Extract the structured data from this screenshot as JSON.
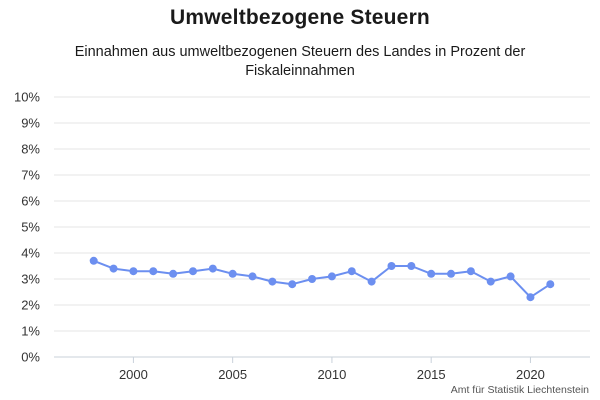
{
  "chart_data": {
    "type": "line",
    "title": "Umweltbezogene Steuern",
    "subtitle": "Einnahmen aus umweltbezogenen Steuern des Landes in Prozent der Fiskaleinnahmen",
    "credit": "Amt für Statistik Liechtenstein",
    "xlabel": "",
    "ylabel": "",
    "xlim": [
      1996,
      2023
    ],
    "ylim": [
      0,
      10
    ],
    "x_ticks": [
      2000,
      2005,
      2010,
      2015,
      2020
    ],
    "y_ticks": [
      0,
      1,
      2,
      3,
      4,
      5,
      6,
      7,
      8,
      9,
      10
    ],
    "y_tick_labels": [
      "0%",
      "1%",
      "2%",
      "3%",
      "4%",
      "5%",
      "6%",
      "7%",
      "8%",
      "9%",
      "10%"
    ],
    "grid": true,
    "color": "#6c8ff0",
    "x": [
      1998,
      1999,
      2000,
      2001,
      2002,
      2003,
      2004,
      2005,
      2006,
      2007,
      2008,
      2009,
      2010,
      2011,
      2012,
      2013,
      2014,
      2015,
      2016,
      2017,
      2018,
      2019,
      2020,
      2021
    ],
    "values": [
      3.7,
      3.4,
      3.3,
      3.3,
      3.2,
      3.3,
      3.4,
      3.2,
      3.1,
      2.9,
      2.8,
      3.0,
      3.1,
      3.3,
      2.9,
      3.5,
      3.5,
      3.2,
      3.2,
      3.3,
      2.9,
      3.1,
      2.3,
      2.8
    ]
  }
}
